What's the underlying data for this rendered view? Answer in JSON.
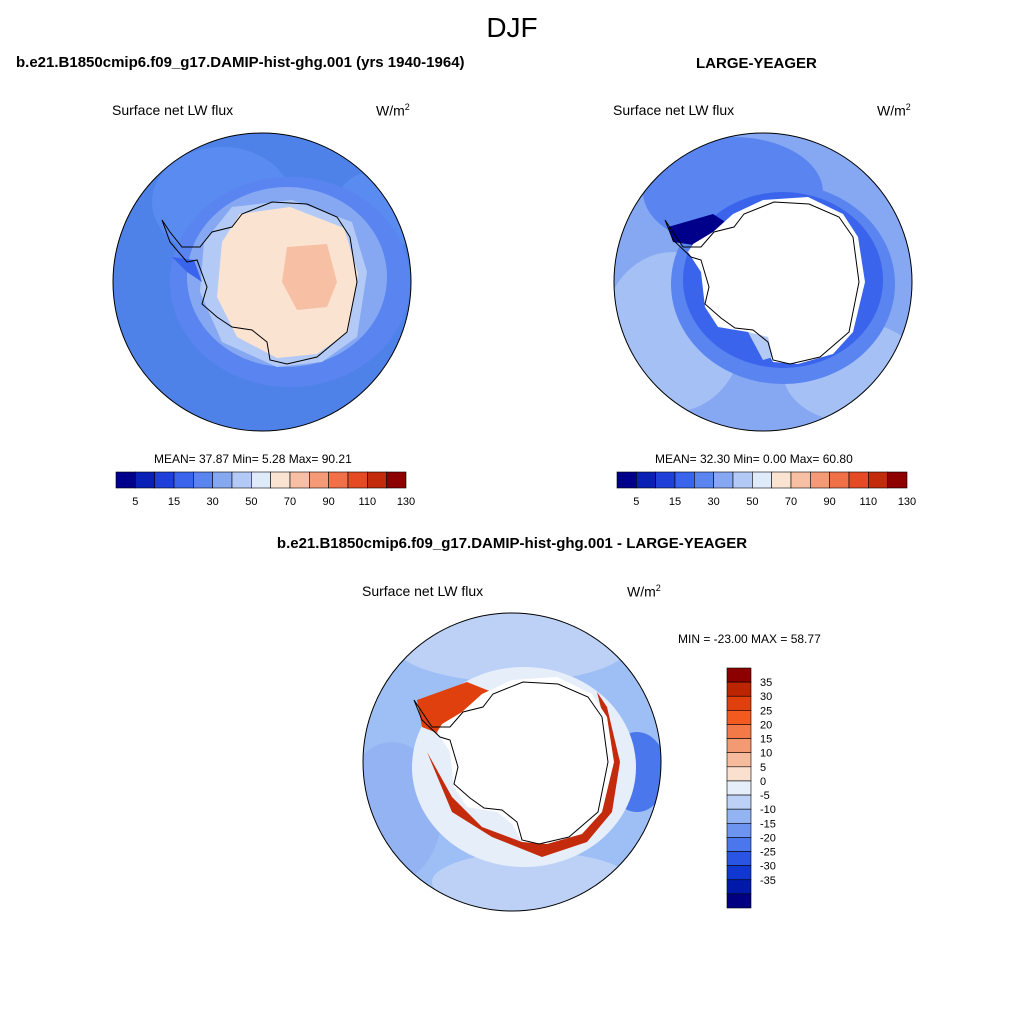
{
  "season": "DJF",
  "panels": [
    {
      "title": "b.e21.B1850cmip6.f09_g17.DAMIP-hist-ghg.001 (yrs 1940-1964)",
      "variable": "Surface net LW flux",
      "units_base": "W/m",
      "units_exp": "2",
      "stats": "MEAN=  37.87  Min=   5.28  Max=  90.21",
      "ocean_color": "#4f82e8"
    },
    {
      "title": "LARGE-YEAGER",
      "variable": "Surface net LW flux",
      "units_base": "W/m",
      "units_exp": "2",
      "stats": "MEAN=  32.30  Min=   0.00  Max=  60.80",
      "ocean_color": "#5c8ff0"
    },
    {
      "title": "b.e21.B1850cmip6.f09_g17.DAMIP-hist-ghg.001 - LARGE-YEAGER",
      "variable": "Surface net LW flux",
      "units_base": "W/m",
      "units_exp": "2",
      "stats": "MIN = -23.00 MAX =  58.77",
      "ocean_color": "#9dbff5"
    }
  ],
  "colorbar_abs": {
    "colors": [
      "#00008a",
      "#0a1fb5",
      "#1f40d8",
      "#3a64ec",
      "#5a85f0",
      "#86a8f3",
      "#b3caf6",
      "#e0ebfa",
      "#fbe3d2",
      "#f7c0a4",
      "#f49a76",
      "#f07048",
      "#e44b25",
      "#c42b0c",
      "#8c0000"
    ],
    "labels": [
      "5",
      "15",
      "30",
      "50",
      "70",
      "90",
      "110",
      "130"
    ]
  },
  "colorbar_diff": {
    "colors": [
      "#8c0000",
      "#bb2500",
      "#e0400d",
      "#f25a20",
      "#f37a48",
      "#f49a72",
      "#f6bb9c",
      "#fae0cf",
      "#e6eefa",
      "#bdd1f6",
      "#94b3f3",
      "#6d95ef",
      "#4a77eb",
      "#2a55e4",
      "#1038d0",
      "#0019a8",
      "#000080"
    ],
    "labels": [
      "35",
      "30",
      "25",
      "20",
      "15",
      "10",
      "5",
      "0",
      "-5",
      "-10",
      "-15",
      "-20",
      "-25",
      "-30",
      "-35"
    ]
  }
}
